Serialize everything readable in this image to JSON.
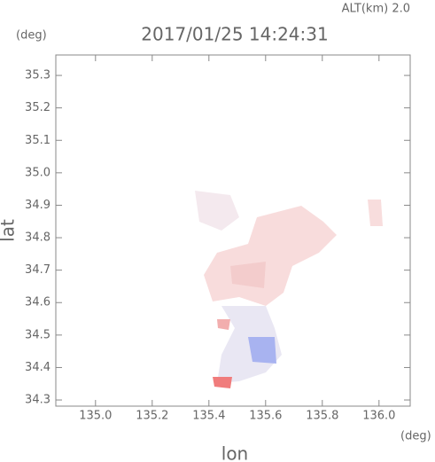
{
  "chart_data": {
    "type": "radar-field",
    "title": "2017/01/25 14:24:31",
    "subtitle": "ALT(km)  2.0",
    "x_label": "lon",
    "y_label": "lat",
    "x_unit": "(deg)",
    "y_unit": "(deg)",
    "xlim": [
      134.86,
      136.11
    ],
    "ylim": [
      34.281,
      35.363
    ],
    "xticks": [
      {
        "value": 135,
        "label": "135.0"
      },
      135.2,
      135.4,
      135.6,
      135.8,
      {
        "value": 136,
        "label": "136.0"
      }
    ],
    "yticks": [
      34.3,
      34.4,
      34.5,
      34.6,
      34.7,
      34.8,
      34.9,
      {
        "value": 35,
        "label": "35.0"
      },
      35.1,
      35.2,
      35.3
    ]
  }
}
